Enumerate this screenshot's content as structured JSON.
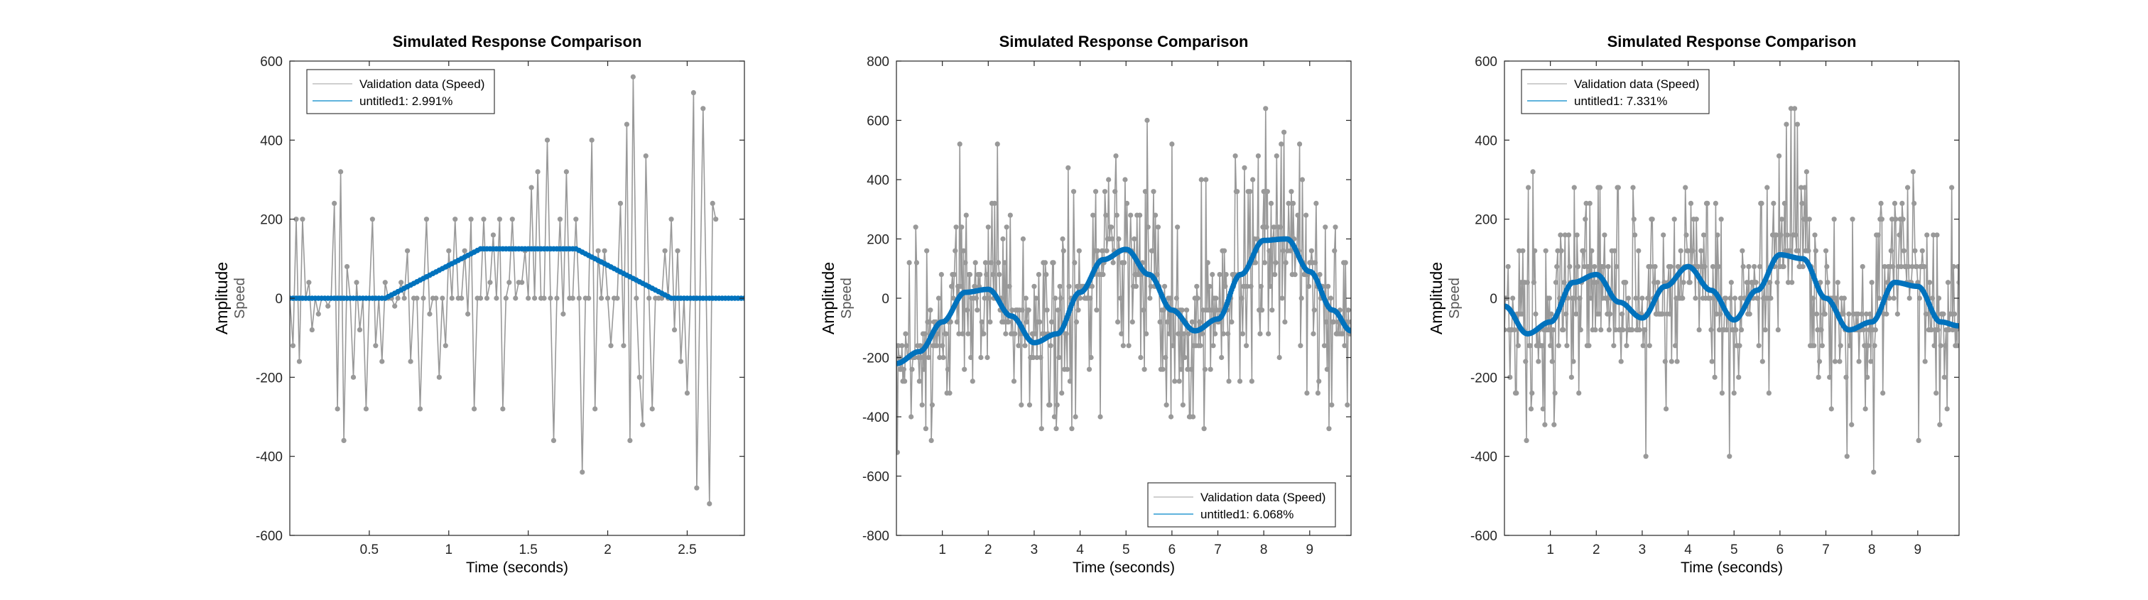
{
  "chart_data": [
    {
      "type": "line",
      "title": "Simulated Response Comparison",
      "xlabel": "Time (seconds)",
      "ylabel": "Amplitude",
      "ylabel2": "Speed",
      "xlim": [
        0,
        2.86
      ],
      "ylim": [
        -600,
        600
      ],
      "xticks": [
        0.5,
        1,
        1.5,
        2,
        2.5
      ],
      "xtick_labels": [
        "0.5",
        "1",
        "1.5",
        "2",
        "2.5"
      ],
      "yticks": [
        -600,
        -400,
        -200,
        0,
        200,
        400,
        600
      ],
      "ytick_labels": [
        "-600",
        "-400",
        "-200",
        "0",
        "200",
        "400",
        "600"
      ],
      "legend_position": "top-left",
      "grid": false,
      "series": [
        {
          "name": "Validation data (Speed)",
          "color": "#999999",
          "style": "stem-line-with-markers",
          "dt": 0.02,
          "x0": 0.0,
          "values": [
            0,
            -120,
            200,
            -160,
            200,
            0,
            40,
            -80,
            0,
            -40,
            0,
            0,
            -20,
            0,
            240,
            -280,
            320,
            -360,
            80,
            0,
            -200,
            40,
            -80,
            0,
            -280,
            0,
            200,
            -120,
            0,
            -160,
            40,
            0,
            0,
            -20,
            0,
            40,
            0,
            120,
            -160,
            0,
            0,
            -280,
            0,
            200,
            -40,
            0,
            0,
            -200,
            0,
            -120,
            120,
            0,
            200,
            0,
            0,
            120,
            -40,
            200,
            -280,
            0,
            0,
            200,
            0,
            40,
            160,
            0,
            200,
            -280,
            0,
            40,
            200,
            0,
            40,
            40,
            120,
            0,
            280,
            0,
            320,
            0,
            0,
            400,
            0,
            -360,
            0,
            200,
            -40,
            320,
            0,
            0,
            200,
            0,
            -440,
            0,
            0,
            400,
            -280,
            120,
            0,
            120,
            0,
            -120,
            0,
            0,
            240,
            -120,
            440,
            -360,
            560,
            0,
            -200,
            -320,
            360,
            0,
            -280,
            0,
            0,
            0,
            120,
            0,
            200,
            -80,
            120,
            -160,
            0,
            -240,
            0,
            520,
            -480,
            0,
            480,
            0,
            -520,
            240,
            200
          ]
        },
        {
          "name": "untitled1: 2.991%",
          "color": "#0072BD",
          "style": "thick-line-with-markers",
          "dt": 0.02,
          "x0": 0.0,
          "knots_x": [
            0,
            0.6,
            1.2,
            1.8,
            2.4,
            2.86
          ],
          "knots_y": [
            0,
            0,
            125,
            125,
            0,
            0
          ]
        }
      ]
    },
    {
      "type": "line",
      "title": "Simulated Response Comparison",
      "xlabel": "Time (seconds)",
      "ylabel": "Amplitude",
      "ylabel2": "Speed",
      "xlim": [
        0,
        9.9
      ],
      "ylim": [
        -800,
        800
      ],
      "xticks": [
        1,
        2,
        3,
        4,
        5,
        6,
        7,
        8,
        9
      ],
      "xtick_labels": [
        "1",
        "2",
        "3",
        "4",
        "5",
        "6",
        "7",
        "8",
        "9"
      ],
      "yticks": [
        -800,
        -600,
        -400,
        -200,
        0,
        200,
        400,
        600,
        800
      ],
      "ytick_labels": [
        "-800",
        "-600",
        "-400",
        "-200",
        "0",
        "200",
        "400",
        "600",
        "800"
      ],
      "legend_position": "bottom-right",
      "grid": false,
      "series": [
        {
          "name": "Validation data (Speed)",
          "color": "#999999",
          "style": "stem-line-with-markers",
          "dt": 0.02,
          "noise_seed": 7,
          "noise_amplitude": 320,
          "follows_model": true
        },
        {
          "name": "untitled1: 6.068%",
          "color": "#0072BD",
          "style": "thick-line-with-markers",
          "dt": 0.02,
          "knots_x": [
            0,
            0.5,
            1.0,
            1.5,
            2.0,
            2.5,
            3.0,
            3.5,
            4.0,
            4.5,
            5.0,
            5.5,
            6.0,
            6.5,
            7.0,
            7.5,
            8.0,
            8.5,
            9.0,
            9.5,
            9.9
          ],
          "knots_y": [
            -220,
            -180,
            -80,
            20,
            30,
            -60,
            -150,
            -120,
            20,
            130,
            165,
            80,
            -40,
            -110,
            -70,
            80,
            195,
            200,
            90,
            -40,
            -110
          ]
        }
      ]
    },
    {
      "type": "line",
      "title": "Simulated Response Comparison",
      "xlabel": "Time (seconds)",
      "ylabel": "Amplitude",
      "ylabel2": "Speed",
      "xlim": [
        0,
        9.9
      ],
      "ylim": [
        -600,
        600
      ],
      "xticks": [
        1,
        2,
        3,
        4,
        5,
        6,
        7,
        8,
        9
      ],
      "xtick_labels": [
        "1",
        "2",
        "3",
        "4",
        "5",
        "6",
        "7",
        "8",
        "9"
      ],
      "yticks": [
        -600,
        -400,
        -200,
        0,
        200,
        400,
        600
      ],
      "ytick_labels": [
        "-600",
        "-400",
        "-200",
        "0",
        "200",
        "400",
        "600"
      ],
      "legend_position": "top-left",
      "grid": false,
      "series": [
        {
          "name": "Validation data (Speed)",
          "color": "#999999",
          "style": "stem-line-with-markers",
          "dt": 0.02,
          "noise_seed": 13,
          "noise_amplitude": 240,
          "follows_model": true
        },
        {
          "name": "untitled1: 7.331%",
          "color": "#0072BD",
          "style": "thick-line-with-markers",
          "dt": 0.02,
          "knots_x": [
            0,
            0.5,
            1.0,
            1.5,
            2.0,
            2.5,
            3.0,
            3.5,
            4.0,
            4.5,
            5.0,
            5.5,
            6.0,
            6.5,
            7.0,
            7.5,
            8.0,
            8.5,
            9.0,
            9.5,
            9.9
          ],
          "knots_y": [
            -20,
            -90,
            -60,
            40,
            60,
            -10,
            -50,
            30,
            80,
            20,
            -55,
            20,
            110,
            100,
            0,
            -80,
            -60,
            40,
            30,
            -60,
            -70
          ]
        }
      ]
    }
  ]
}
